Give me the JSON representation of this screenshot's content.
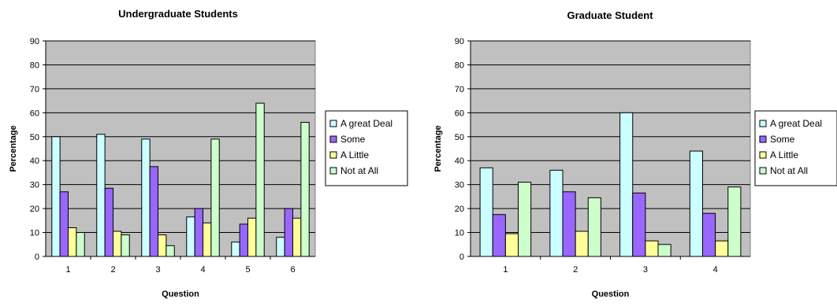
{
  "chart_data": [
    {
      "type": "bar",
      "title": "Undergraduate Students",
      "xlabel": "Question",
      "ylabel": "Percentage",
      "ylim": [
        0,
        90
      ],
      "yticks": [
        0,
        10,
        20,
        30,
        40,
        50,
        60,
        70,
        80,
        90
      ],
      "grid": true,
      "legend_position": "right",
      "categories": [
        "1",
        "2",
        "3",
        "4",
        "5",
        "6"
      ],
      "series": [
        {
          "name": "A great Deal",
          "color": "#ccffff",
          "values": [
            50,
            51,
            49,
            16.5,
            6,
            8
          ]
        },
        {
          "name": "Some",
          "color": "#9966ff",
          "values": [
            27,
            28.5,
            37.5,
            20,
            13.5,
            20
          ]
        },
        {
          "name": "A Little",
          "color": "#ffff99",
          "values": [
            12,
            10.5,
            9,
            14,
            16,
            16
          ]
        },
        {
          "name": "Not at All",
          "color": "#ccffcc",
          "values": [
            10,
            9,
            4.5,
            49,
            64,
            56
          ]
        }
      ]
    },
    {
      "type": "bar",
      "title": "Graduate Student",
      "xlabel": "Question",
      "ylabel": "Percentage",
      "ylim": [
        0,
        90
      ],
      "yticks": [
        0,
        10,
        20,
        30,
        40,
        50,
        60,
        70,
        80,
        90
      ],
      "grid": true,
      "legend_position": "right",
      "categories": [
        "1",
        "2",
        "3",
        "4"
      ],
      "series": [
        {
          "name": "A great Deal",
          "color": "#ccffff",
          "values": [
            37,
            36,
            60,
            44
          ]
        },
        {
          "name": "Some",
          "color": "#9966ff",
          "values": [
            17.5,
            27,
            26.5,
            18
          ]
        },
        {
          "name": "A Little",
          "color": "#ffff99",
          "values": [
            9.5,
            10.5,
            6.5,
            6.5
          ]
        },
        {
          "name": "Not at All",
          "color": "#ccffcc",
          "values": [
            31,
            24.5,
            5,
            29
          ]
        }
      ]
    }
  ],
  "plot_background": "#c0c0c0"
}
